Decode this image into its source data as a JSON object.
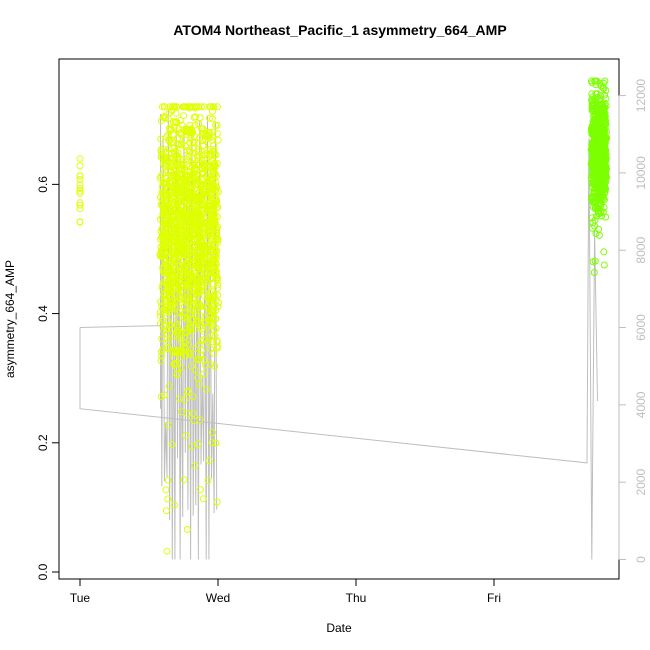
{
  "chart_data": {
    "type": "scatter",
    "title": "ATOM4 Northeast_Pacific_1 asymmetry_664_AMP",
    "xlabel": "Date",
    "ylabel": "asymmetry_664_AMP",
    "x_axis": {
      "type": "date",
      "range": [
        "Tue 00:00",
        "Fri 19:30"
      ],
      "ticks": [
        "Tue",
        "Wed",
        "Thu",
        "Fri"
      ]
    },
    "y_axis_left": {
      "range": [
        0.0,
        0.76
      ],
      "ticks": [
        "0.0",
        "0.2",
        "0.4",
        "0.6"
      ]
    },
    "y_axis_right": {
      "range": [
        0,
        12500
      ],
      "ticks": [
        "0",
        "2000",
        "4000",
        "6000",
        "8000",
        "10000",
        "12000"
      ],
      "color": "#bebebe"
    },
    "grid": false,
    "legend": "none",
    "series": [
      {
        "kind": "points",
        "marker": "open-circle",
        "color": "#DFFF00",
        "clusters": [
          {
            "time": "Tue 00:00",
            "y_range": [
              0.54,
              0.65
            ],
            "n": 14
          },
          {
            "time": "Tue 14:00-Wed 00:00",
            "y_range": [
              0.02,
              0.72
            ],
            "center": 0.53,
            "n": 1400
          }
        ]
      },
      {
        "kind": "points",
        "marker": "open-circle",
        "color": "#7CFF00",
        "clusters": [
          {
            "time": "Fri 17:00-Fri 19:30",
            "y_range": [
              0.46,
              0.76
            ],
            "center": 0.65,
            "n": 700
          }
        ]
      },
      {
        "kind": "line",
        "axis": "right",
        "color": "#bebebe",
        "points": [
          [
            "Tue 00:00",
            6000
          ],
          [
            "Tue 00:00",
            3900
          ],
          [
            "Fri 16:10",
            2500
          ],
          [
            "Fri 16:30",
            10900
          ],
          [
            "Fri 17:00",
            0
          ],
          [
            "Fri 17:30",
            8500
          ],
          [
            "Fri 18:00",
            4100
          ]
        ],
        "notes": "Wed: depth profiles oscillating 0-12000 between Tue 14:00 and Wed 00:00"
      }
    ]
  }
}
